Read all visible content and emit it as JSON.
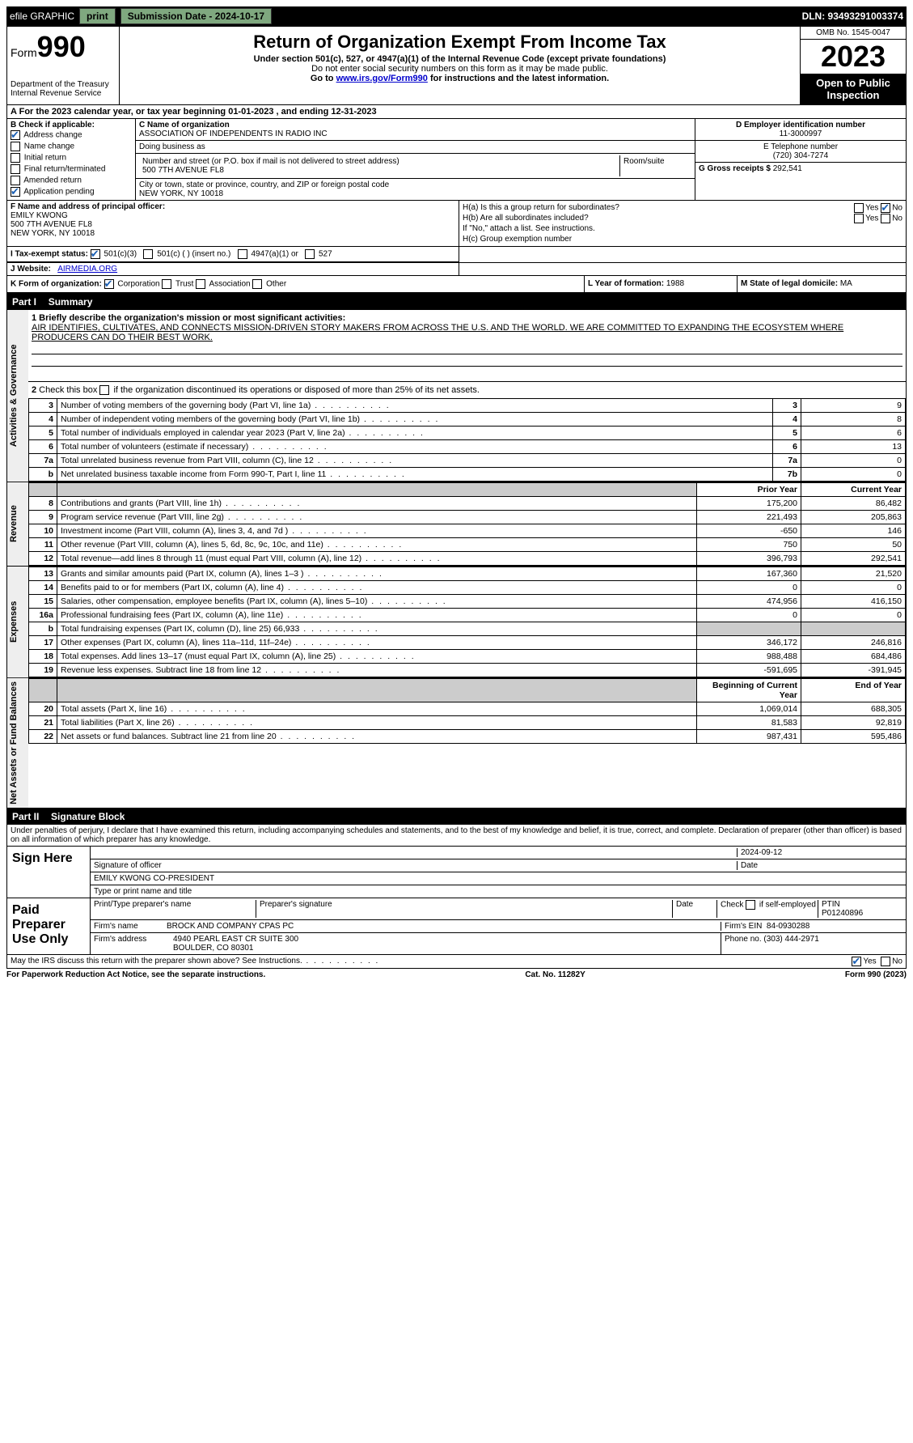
{
  "topbar": {
    "efile": "efile GRAPHIC",
    "print": "print",
    "submission_label": "Submission Date - 2024-10-17",
    "dln": "DLN: 93493291003374"
  },
  "header": {
    "form_word": "Form",
    "form_num": "990",
    "dept": "Department of the Treasury",
    "irs": "Internal Revenue Service",
    "title": "Return of Organization Exempt From Income Tax",
    "subtitle": "Under section 501(c), 527, or 4947(a)(1) of the Internal Revenue Code (except private foundations)",
    "warning": "Do not enter social security numbers on this form as it may be made public.",
    "goto_pre": "Go to ",
    "goto_link": "www.irs.gov/Form990",
    "goto_post": " for instructions and the latest information.",
    "omb": "OMB No. 1545-0047",
    "year": "2023",
    "open": "Open to Public Inspection"
  },
  "line_a": "For the 2023 calendar year, or tax year beginning 01-01-2023    , and ending 12-31-2023",
  "box_b": {
    "label": "B Check if applicable:",
    "items": [
      "Address change",
      "Name change",
      "Initial return",
      "Final return/terminated",
      "Amended return",
      "Application pending"
    ],
    "checked": [
      true,
      false,
      false,
      false,
      false,
      true
    ]
  },
  "box_c": {
    "label": "C Name of organization",
    "name": "ASSOCIATION OF INDEPENDENTS IN RADIO INC",
    "dba_label": "Doing business as",
    "addr_label": "Number and street (or P.O. box if mail is not delivered to street address)",
    "room_label": "Room/suite",
    "addr": "500 7TH AVENUE FL8",
    "city_label": "City or town, state or province, country, and ZIP or foreign postal code",
    "city": "NEW YORK, NY  10018"
  },
  "box_d": {
    "label": "D Employer identification number",
    "val": "11-3000997"
  },
  "box_e": {
    "label": "E Telephone number",
    "val": "(720) 304-7274"
  },
  "box_g": {
    "label": "G Gross receipts $",
    "val": "292,541"
  },
  "box_f": {
    "label": "F  Name and address of principal officer:",
    "name": "EMILY KWONG",
    "addr1": "500 7TH AVENUE FL8",
    "addr2": "NEW YORK, NY  10018"
  },
  "box_h": {
    "a": "H(a)  Is this a group return for subordinates?",
    "b": "H(b)  Are all subordinates included?",
    "note": "If \"No,\" attach a list. See instructions.",
    "c": "H(c)  Group exemption number",
    "yes": "Yes",
    "no": "No"
  },
  "box_i": {
    "label": "I   Tax-exempt status:",
    "opts": [
      "501(c)(3)",
      "501(c) (  ) (insert no.)",
      "4947(a)(1) or",
      "527"
    ]
  },
  "box_j": {
    "label": "J   Website:",
    "val": "AIRMEDIA.ORG"
  },
  "box_k": {
    "label": "K Form of organization:",
    "opts": [
      "Corporation",
      "Trust",
      "Association",
      "Other"
    ]
  },
  "box_l": {
    "label": "L Year of formation:",
    "val": "1988"
  },
  "box_m": {
    "label": "M State of legal domicile:",
    "val": "MA"
  },
  "part1": {
    "title": "Part I",
    "subtitle": "Summary",
    "q1_label": "1  Briefly describe the organization's mission or most significant activities:",
    "q1_text": "AIR IDENTIFIES, CULTIVATES, AND CONNECTS MISSION-DRIVEN STORY MAKERS FROM ACROSS THE U.S. AND THE WORLD. WE ARE COMMITTED TO EXPANDING THE ECOSYSTEM WHERE PRODUCERS CAN DO THEIR BEST WORK.",
    "q2": "2   Check this box      if the organization discontinued its operations or disposed of more than 25% of its net assets.",
    "tabs": {
      "ag": "Activities & Governance",
      "rev": "Revenue",
      "exp": "Expenses",
      "na": "Net Assets or Fund Balances"
    },
    "gov_rows": [
      {
        "n": "3",
        "label": "Number of voting members of the governing body (Part VI, line 1a)",
        "box": "3",
        "val": "9"
      },
      {
        "n": "4",
        "label": "Number of independent voting members of the governing body (Part VI, line 1b)",
        "box": "4",
        "val": "8"
      },
      {
        "n": "5",
        "label": "Total number of individuals employed in calendar year 2023 (Part V, line 2a)",
        "box": "5",
        "val": "6"
      },
      {
        "n": "6",
        "label": "Total number of volunteers (estimate if necessary)",
        "box": "6",
        "val": "13"
      },
      {
        "n": "7a",
        "label": "Total unrelated business revenue from Part VIII, column (C), line 12",
        "box": "7a",
        "val": "0"
      },
      {
        "n": "b",
        "label": "Net unrelated business taxable income from Form 990-T, Part I, line 11",
        "box": "7b",
        "val": "0"
      }
    ],
    "col_headers": {
      "prior": "Prior Year",
      "current": "Current Year"
    },
    "rev_rows": [
      {
        "n": "8",
        "label": "Contributions and grants (Part VIII, line 1h)",
        "prior": "175,200",
        "cur": "86,482"
      },
      {
        "n": "9",
        "label": "Program service revenue (Part VIII, line 2g)",
        "prior": "221,493",
        "cur": "205,863"
      },
      {
        "n": "10",
        "label": "Investment income (Part VIII, column (A), lines 3, 4, and 7d )",
        "prior": "-650",
        "cur": "146"
      },
      {
        "n": "11",
        "label": "Other revenue (Part VIII, column (A), lines 5, 6d, 8c, 9c, 10c, and 11e)",
        "prior": "750",
        "cur": "50"
      },
      {
        "n": "12",
        "label": "Total revenue—add lines 8 through 11 (must equal Part VIII, column (A), line 12)",
        "prior": "396,793",
        "cur": "292,541"
      }
    ],
    "exp_rows": [
      {
        "n": "13",
        "label": "Grants and similar amounts paid (Part IX, column (A), lines 1–3 )",
        "prior": "167,360",
        "cur": "21,520"
      },
      {
        "n": "14",
        "label": "Benefits paid to or for members (Part IX, column (A), line 4)",
        "prior": "0",
        "cur": "0"
      },
      {
        "n": "15",
        "label": "Salaries, other compensation, employee benefits (Part IX, column (A), lines 5–10)",
        "prior": "474,956",
        "cur": "416,150"
      },
      {
        "n": "16a",
        "label": "Professional fundraising fees (Part IX, column (A), line 11e)",
        "prior": "0",
        "cur": "0"
      },
      {
        "n": "b",
        "label": "Total fundraising expenses (Part IX, column (D), line 25) 66,933",
        "prior": "",
        "cur": "",
        "shade": true
      },
      {
        "n": "17",
        "label": "Other expenses (Part IX, column (A), lines 11a–11d, 11f–24e)",
        "prior": "346,172",
        "cur": "246,816"
      },
      {
        "n": "18",
        "label": "Total expenses. Add lines 13–17 (must equal Part IX, column (A), line 25)",
        "prior": "988,488",
        "cur": "684,486"
      },
      {
        "n": "19",
        "label": "Revenue less expenses. Subtract line 18 from line 12",
        "prior": "-591,695",
        "cur": "-391,945"
      }
    ],
    "na_headers": {
      "begin": "Beginning of Current Year",
      "end": "End of Year"
    },
    "na_rows": [
      {
        "n": "20",
        "label": "Total assets (Part X, line 16)",
        "prior": "1,069,014",
        "cur": "688,305"
      },
      {
        "n": "21",
        "label": "Total liabilities (Part X, line 26)",
        "prior": "81,583",
        "cur": "92,819"
      },
      {
        "n": "22",
        "label": "Net assets or fund balances. Subtract line 21 from line 20",
        "prior": "987,431",
        "cur": "595,486"
      }
    ]
  },
  "part2": {
    "title": "Part II",
    "subtitle": "Signature Block",
    "penalty": "Under penalties of perjury, I declare that I have examined this return, including accompanying schedules and statements, and to the best of my knowledge and belief, it is true, correct, and complete. Declaration of preparer (other than officer) is based on all information of which preparer has any knowledge.",
    "sign_here": "Sign Here",
    "sig_officer": "Signature of officer",
    "sig_name": "EMILY KWONG  CO-PRESIDENT",
    "sig_type": "Type or print name and title",
    "date_label": "Date",
    "date_val": "2024-09-12",
    "paid": "Paid Preparer Use Only",
    "prep_name_label": "Print/Type preparer's name",
    "prep_sig_label": "Preparer's signature",
    "check_self": "Check        if self-employed",
    "ptin_label": "PTIN",
    "ptin": "P01240896",
    "firm_name_label": "Firm's name",
    "firm_name": "BROCK AND COMPANY CPAS PC",
    "firm_ein_label": "Firm's EIN",
    "firm_ein": "84-0930288",
    "firm_addr_label": "Firm's address",
    "firm_addr1": "4940 PEARL EAST CR SUITE 300",
    "firm_addr2": "BOULDER, CO  80301",
    "phone_label": "Phone no.",
    "phone": "(303) 444-2971",
    "discuss": "May the IRS discuss this return with the preparer shown above? See Instructions."
  },
  "footer": {
    "left": "For Paperwork Reduction Act Notice, see the separate instructions.",
    "mid": "Cat. No. 11282Y",
    "right": "Form 990 (2023)"
  }
}
